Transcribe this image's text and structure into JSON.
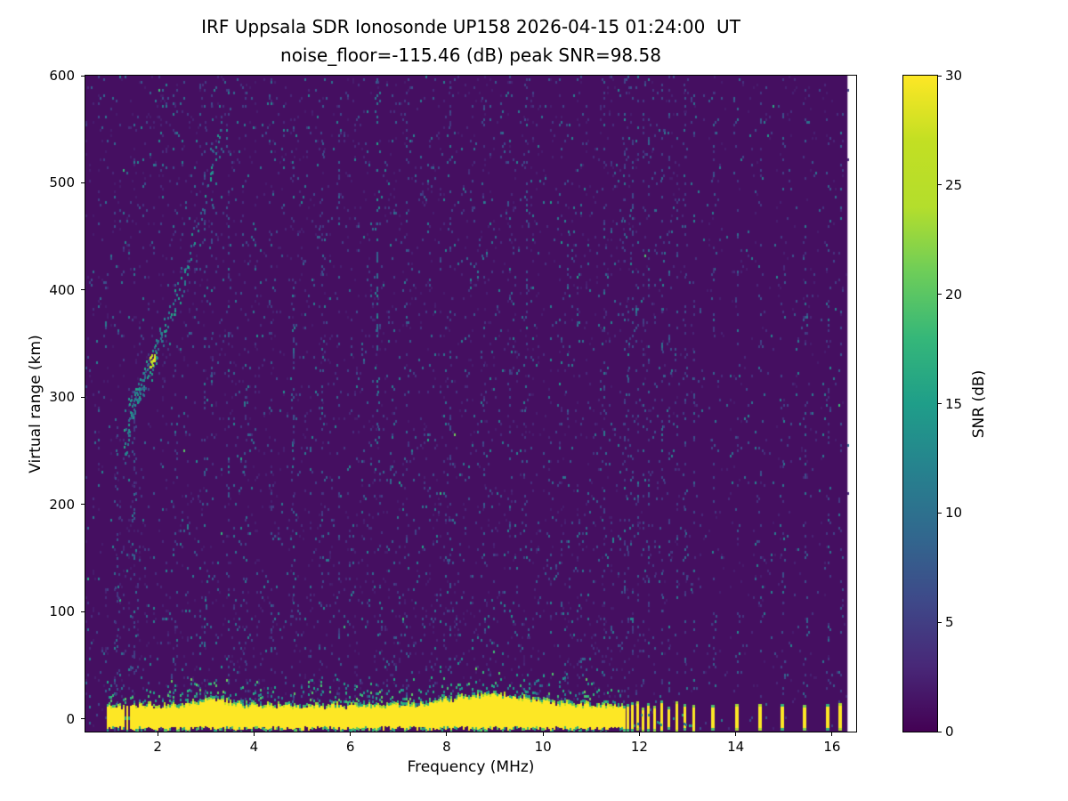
{
  "chart_data": {
    "type": "heatmap",
    "title": "IRF Uppsala SDR Ionosonde UP158 2026-04-15 01:24:00  UT",
    "subtitle": "noise_floor=-115.46 (dB) peak SNR=98.58",
    "xlabel": "Frequency (MHz)",
    "ylabel": "Virtual range (km)",
    "xlim": [
      0.5,
      16.5
    ],
    "ylim": [
      -12,
      600
    ],
    "xticks": [
      2,
      4,
      6,
      8,
      10,
      12,
      14,
      16
    ],
    "yticks": [
      0,
      100,
      200,
      300,
      400,
      500,
      600
    ],
    "colorbar": {
      "label": "SNR (dB)",
      "ticks": [
        0,
        5,
        10,
        15,
        20,
        25,
        30
      ],
      "vmin": 0,
      "vmax": 30
    },
    "colormap": {
      "name": "viridis",
      "stops": [
        [
          0.0,
          "#440154"
        ],
        [
          0.1,
          "#482878"
        ],
        [
          0.2,
          "#3e4989"
        ],
        [
          0.3,
          "#31688e"
        ],
        [
          0.4,
          "#26828e"
        ],
        [
          0.5,
          "#1f9e89"
        ],
        [
          0.6,
          "#35b779"
        ],
        [
          0.7,
          "#6dcd59"
        ],
        [
          0.8,
          "#b4de2c"
        ],
        [
          0.9,
          "#c2df23"
        ],
        [
          1.0,
          "#fde725"
        ]
      ]
    },
    "data_extent_mhz": [
      0.5,
      16.32
    ],
    "background_snr_db": 1,
    "noise": {
      "speckle_probability": 0.05,
      "snr_range_db": [
        2,
        12
      ],
      "right_region_start_mhz": 11.62,
      "right_region_density_factor": 0.45
    },
    "ground_band": {
      "x_range_mhz": [
        0.95,
        11.64
      ],
      "y_range_km": [
        -7,
        9
      ],
      "snr_db": 30,
      "halo_km": 22,
      "gap_mhz": [
        1.3,
        1.42
      ],
      "bulges": [
        {
          "center_mhz": 8.9,
          "sigma": 0.8,
          "extra_km": 10
        },
        {
          "center_mhz": 3.1,
          "sigma": 0.3,
          "extra_km": 6
        }
      ]
    },
    "pulsed_band_mhz": [
      11.68,
      11.76,
      11.85,
      11.95,
      12.06,
      12.18,
      12.31,
      12.45,
      12.6,
      12.76,
      12.93,
      13.11
    ],
    "isolated_pulses_mhz": [
      13.52,
      14.02,
      14.5,
      14.97,
      15.42,
      15.9,
      16.16
    ],
    "pulse_column_strength": 1.6,
    "echo_trace": {
      "points_mhz_km": [
        [
          1.3,
          245
        ],
        [
          1.42,
          290
        ],
        [
          1.55,
          302
        ],
        [
          1.7,
          315
        ],
        [
          1.85,
          330
        ],
        [
          2.0,
          348
        ],
        [
          2.15,
          365
        ],
        [
          2.35,
          390
        ],
        [
          2.55,
          418
        ],
        [
          2.75,
          448
        ],
        [
          2.95,
          478
        ],
        [
          3.1,
          505
        ],
        [
          3.2,
          532
        ],
        [
          3.3,
          558
        ]
      ],
      "bright_spot_mhz_km": [
        1.88,
        336
      ],
      "snr_range_db": [
        7,
        16
      ]
    },
    "rfi_stripes": [
      {
        "mhz": 1.15,
        "strength": 2.2,
        "y_km": [
          0,
          320
        ]
      },
      {
        "mhz": 1.5,
        "strength": 2.6,
        "y_km": [
          40,
          300
        ]
      },
      {
        "mhz": 2.35,
        "strength": 1.6,
        "y_km": [
          0,
          600
        ]
      },
      {
        "mhz": 2.95,
        "strength": 2.0,
        "y_km": [
          0,
          600
        ]
      },
      {
        "mhz": 3.1,
        "strength": 1.8,
        "y_km": [
          250,
          600
        ]
      },
      {
        "mhz": 3.45,
        "strength": 1.5,
        "y_km": [
          0,
          600
        ]
      },
      {
        "mhz": 3.8,
        "strength": 1.3,
        "y_km": [
          0,
          600
        ]
      },
      {
        "mhz": 4.35,
        "strength": 1.5,
        "y_km": [
          0,
          600
        ]
      },
      {
        "mhz": 4.8,
        "strength": 1.9,
        "y_km": [
          0,
          600
        ]
      },
      {
        "mhz": 5.4,
        "strength": 1.7,
        "y_km": [
          0,
          600
        ]
      },
      {
        "mhz": 5.75,
        "strength": 1.3,
        "y_km": [
          0,
          600
        ]
      },
      {
        "mhz": 6.55,
        "strength": 3.4,
        "y_km": [
          230,
          600
        ]
      },
      {
        "mhz": 6.6,
        "strength": 1.4,
        "y_km": [
          0,
          240
        ]
      },
      {
        "mhz": 7.15,
        "strength": 1.3,
        "y_km": [
          0,
          600
        ]
      },
      {
        "mhz": 8.05,
        "strength": 1.6,
        "y_km": [
          0,
          600
        ]
      },
      {
        "mhz": 8.75,
        "strength": 1.4,
        "y_km": [
          0,
          600
        ]
      },
      {
        "mhz": 9.3,
        "strength": 1.5,
        "y_km": [
          0,
          600
        ]
      },
      {
        "mhz": 9.65,
        "strength": 1.7,
        "y_km": [
          0,
          600
        ]
      },
      {
        "mhz": 10.5,
        "strength": 1.3,
        "y_km": [
          0,
          600
        ]
      },
      {
        "mhz": 11.25,
        "strength": 1.5,
        "y_km": [
          0,
          600
        ]
      }
    ]
  }
}
